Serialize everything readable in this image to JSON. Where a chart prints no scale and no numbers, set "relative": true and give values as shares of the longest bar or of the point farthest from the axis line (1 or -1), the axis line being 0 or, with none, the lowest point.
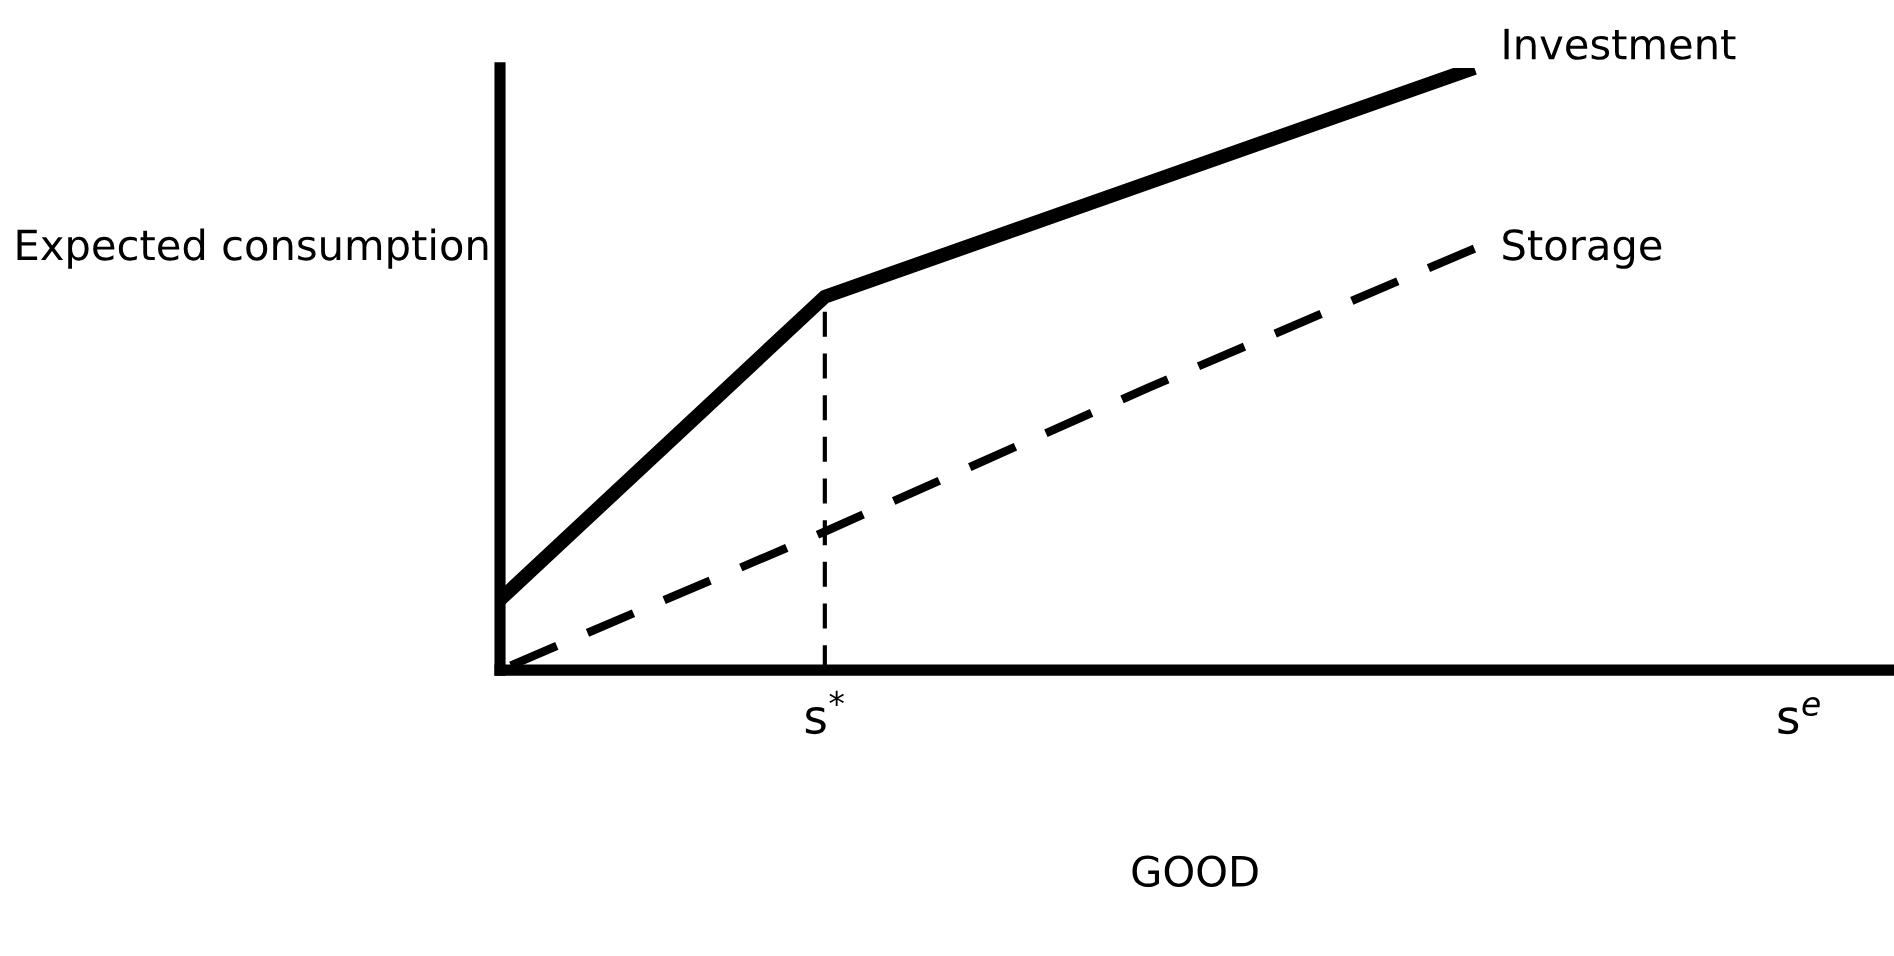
{
  "chart_data": {
    "type": "line",
    "relative": true,
    "xlabel": "GOOD",
    "ylabel": "Expected consumption",
    "categories": [
      null,
      "s$^{*}$",
      null,
      null,
      "s$^{e}$"
    ],
    "series": [
      {
        "name": "Investment",
        "color": "#000000",
        "line_style": "solid",
        "values": [
          0.117,
          0.62,
          0.81,
          1,
          null
        ]
      },
      {
        "name": "Storage",
        "color": "#000000",
        "line_style": "dashed",
        "values": [
          0,
          0.23,
          0.47,
          0.7,
          null
        ]
      }
    ],
    "ref_lines": [
      {
        "axis": "x",
        "value": "s$^{*}$",
        "color": "#000000",
        "line_style": "dashed"
      }
    ],
    "grid": false,
    "legend": false,
    "marker": "none"
  }
}
